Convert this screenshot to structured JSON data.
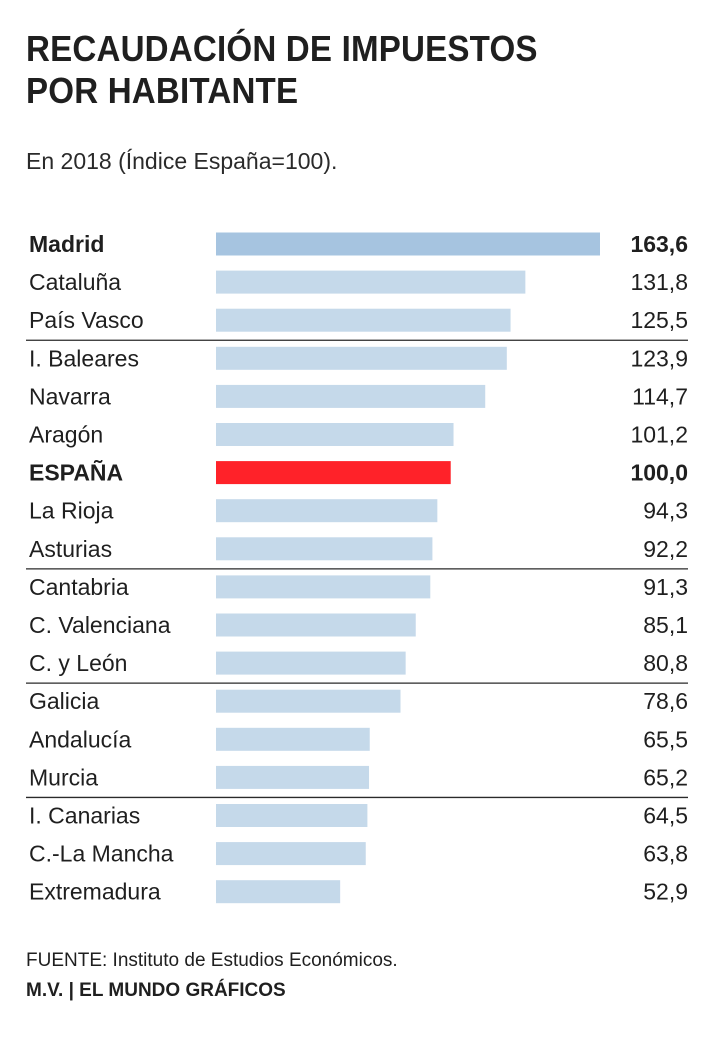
{
  "header": {
    "title_line1": "RECAUDACIÓN DE IMPUESTOS",
    "title_line2": "POR HABITANTE",
    "subtitle": "En 2018 (Índice España=100)."
  },
  "footer": {
    "source": "FUENTE: Instituto de Estudios Económicos.",
    "credit": "M.V. | EL MUNDO GRÁFICOS"
  },
  "colors": {
    "bar_default": "#c5d9ea",
    "bar_top": "#a6c4e0",
    "bar_reference": "#ff2229",
    "divider": "#2a2a2a",
    "text": "#1f1f1f"
  },
  "chart_data": {
    "type": "bar",
    "orientation": "horizontal",
    "title": "RECAUDACIÓN DE IMPUESTOS POR HABITANTE",
    "subtitle": "En 2018 (Índice España=100).",
    "xlim": [
      0,
      163.6
    ],
    "grid": false,
    "categories": [
      "Madrid",
      "Cataluña",
      "País Vasco",
      "I. Baleares",
      "Navarra",
      "Aragón",
      "ESPAÑA",
      "La Rioja",
      "Asturias",
      "Cantabria",
      "C. Valenciana",
      "C. y León",
      "Galicia",
      "Andalucía",
      "Murcia",
      "I. Canarias",
      "C.-La Mancha",
      "Extremadura"
    ],
    "values": [
      163.6,
      131.8,
      125.5,
      123.9,
      114.7,
      101.2,
      100.0,
      94.3,
      92.2,
      91.3,
      85.1,
      80.8,
      78.6,
      65.5,
      65.2,
      64.5,
      63.8,
      52.9
    ],
    "value_labels": [
      "163,6",
      "131,8",
      "125,5",
      "123,9",
      "114,7",
      "101,2",
      "100,0",
      "94,3",
      "92,2",
      "91,3",
      "85,1",
      "80,8",
      "78,6",
      "65,5",
      "65,2",
      "64,5",
      "63,8",
      "52,9"
    ],
    "emphasis": [
      "top",
      "none",
      "none",
      "none",
      "none",
      "none",
      "reference",
      "none",
      "none",
      "none",
      "none",
      "none",
      "none",
      "none",
      "none",
      "none",
      "none",
      "none"
    ],
    "group_separators_after": [
      "País Vasco",
      "Asturias",
      "C. y León",
      "Murcia"
    ]
  }
}
